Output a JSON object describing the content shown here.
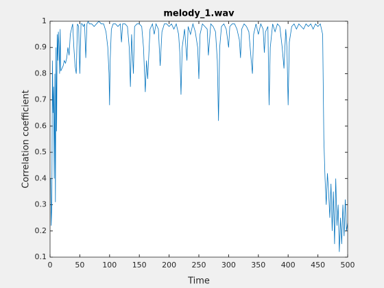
{
  "chart_data": {
    "type": "line",
    "title": "melody_1.wav",
    "x_label": "Time",
    "y_label": "Correlation coefficient",
    "xlim": [
      0,
      500
    ],
    "xticks": [
      0,
      50,
      100,
      150,
      200,
      250,
      300,
      350,
      400,
      450,
      500
    ],
    "ylim": [
      0.1,
      1
    ],
    "yticks": [
      0.1,
      0.2,
      0.3,
      0.4,
      0.5,
      0.6,
      0.7,
      0.8,
      0.9,
      1
    ],
    "series": [
      {
        "color": "#0072bd",
        "x": [
          1,
          2,
          3,
          4,
          5,
          6,
          7,
          8,
          9,
          10,
          11,
          12,
          13,
          14,
          15,
          16,
          17,
          18,
          20,
          22,
          24,
          26,
          28,
          30,
          32,
          34,
          36,
          38,
          40,
          42,
          44,
          46,
          48,
          50,
          52,
          54,
          56,
          58,
          60,
          62,
          64,
          66,
          70,
          74,
          78,
          82,
          86,
          90,
          94,
          97,
          99,
          100,
          101,
          103,
          106,
          110,
          114,
          118,
          120,
          122,
          126,
          130,
          133,
          135,
          137,
          140,
          142,
          146,
          150,
          154,
          157,
          160,
          162,
          164,
          168,
          172,
          175,
          178,
          182,
          185,
          188,
          192,
          196,
          200,
          204,
          208,
          212,
          216,
          218,
          220,
          222,
          226,
          230,
          232,
          236,
          240,
          244,
          248,
          250,
          252,
          256,
          260,
          264,
          266,
          270,
          274,
          278,
          281,
          283,
          285,
          288,
          292,
          296,
          300,
          302,
          306,
          310,
          314,
          318,
          320,
          322,
          326,
          330,
          334,
          338,
          340,
          342,
          346,
          350,
          354,
          358,
          360,
          362,
          366,
          368,
          370,
          374,
          378,
          382,
          386,
          390,
          393,
          396,
          398,
          400,
          402,
          406,
          410,
          414,
          418,
          422,
          426,
          430,
          434,
          438,
          442,
          446,
          450,
          454,
          456,
          458,
          460,
          462,
          464,
          466,
          468,
          470,
          472,
          474,
          476,
          478,
          480,
          482,
          484,
          486,
          488,
          490,
          492,
          494,
          496,
          498,
          500
        ],
        "values": [
          0.4,
          0.22,
          0.3,
          0.85,
          0.65,
          0.75,
          0.4,
          0.8,
          0.31,
          0.9,
          0.58,
          0.95,
          0.85,
          0.96,
          0.9,
          0.8,
          0.97,
          0.81,
          0.82,
          0.83,
          0.85,
          0.84,
          0.86,
          0.9,
          0.87,
          0.95,
          0.97,
          0.99,
          0.9,
          0.83,
          0.8,
          0.99,
          0.98,
          0.8,
          0.99,
          0.99,
          0.98,
          0.99,
          0.86,
          0.99,
          1,
          0.99,
          0.99,
          0.98,
          0.99,
          1,
          0.99,
          0.99,
          0.96,
          0.9,
          0.8,
          0.68,
          0.85,
          0.97,
          0.99,
          0.99,
          0.98,
          0.99,
          0.92,
          0.99,
          0.99,
          0.98,
          0.9,
          0.75,
          0.95,
          0.8,
          0.98,
          0.99,
          0.99,
          0.98,
          0.9,
          0.73,
          0.85,
          0.78,
          0.97,
          0.99,
          0.95,
          0.99,
          0.97,
          0.83,
          0.96,
          0.99,
          0.99,
          0.98,
          0.99,
          0.97,
          0.99,
          0.95,
          0.88,
          0.72,
          0.9,
          0.97,
          0.85,
          0.98,
          0.95,
          0.99,
          0.96,
          0.9,
          0.78,
          0.95,
          0.99,
          0.98,
          0.97,
          0.87,
          0.99,
          0.98,
          0.96,
          0.85,
          0.62,
          0.9,
          0.98,
          0.99,
          0.97,
          0.9,
          0.98,
          0.99,
          0.99,
          0.97,
          0.93,
          0.86,
          0.97,
          0.99,
          0.98,
          0.96,
          0.85,
          0.8,
          0.95,
          0.99,
          0.95,
          0.99,
          0.97,
          0.88,
          0.96,
          0.98,
          0.68,
          0.9,
          0.99,
          0.96,
          0.99,
          0.98,
          0.9,
          0.82,
          0.97,
          0.9,
          0.68,
          0.92,
          0.98,
          0.99,
          0.97,
          0.99,
          0.98,
          0.97,
          0.99,
          0.98,
          0.99,
          0.97,
          0.99,
          0.98,
          0.99,
          0.97,
          0.95,
          0.55,
          0.4,
          0.3,
          0.42,
          0.35,
          0.25,
          0.38,
          0.2,
          0.35,
          0.15,
          0.4,
          0.22,
          0.3,
          0.12,
          0.25,
          0.15,
          0.3,
          0.18,
          0.32,
          0.2,
          0.23
        ]
      }
    ]
  }
}
